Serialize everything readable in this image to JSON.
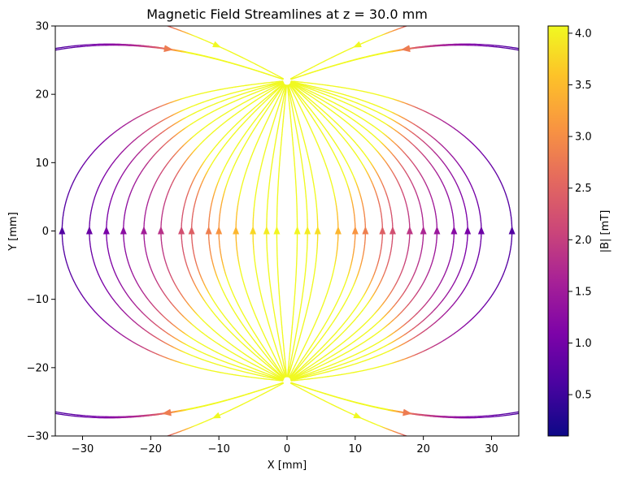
{
  "chart_data": {
    "type": "streamplot",
    "title": "Magnetic Field Streamlines at z = 30.0 mm",
    "xlabel": "X [mm]",
    "ylabel": "Y [mm]",
    "xlim": [
      -34,
      34
    ],
    "ylim": [
      -30,
      30
    ],
    "x_ticks": [
      -30,
      -20,
      -10,
      0,
      10,
      20,
      30
    ],
    "x_tick_labels": [
      "−30",
      "−20",
      "−10",
      "0",
      "10",
      "20",
      "30"
    ],
    "y_ticks": [
      -30,
      -20,
      -10,
      0,
      10,
      20,
      30
    ],
    "y_tick_labels": [
      "−30",
      "−20",
      "−10",
      "0",
      "10",
      "20",
      "30"
    ],
    "colorbar": {
      "label": "|B| [mT]",
      "range": [
        0.1,
        4.07
      ],
      "colormap": "plasma",
      "ticks": [
        0.5,
        1.0,
        1.5,
        2.0,
        2.5,
        3.0,
        3.5,
        4.0
      ],
      "tick_labels": [
        "0.5",
        "1.0",
        "1.5",
        "2.0",
        "2.5",
        "3.0",
        "3.5",
        "4.0"
      ]
    },
    "field": {
      "description": "dipole-like field between sources at top (0,22) and bottom (0,-22); field lines arc from bottom up to top",
      "inner_lines_x0": [
        -33,
        -29,
        -26.5,
        -24,
        -21,
        -18.5,
        -15.5,
        -14,
        -11.5,
        -10,
        -7.5,
        -5,
        -3,
        -1.5,
        1.5,
        3,
        4.5,
        7.5,
        10,
        11.5,
        14,
        15.5,
        18,
        20,
        22,
        24.5,
        26.5,
        28.5,
        33
      ],
      "max_field_mT": 4.07
    }
  }
}
